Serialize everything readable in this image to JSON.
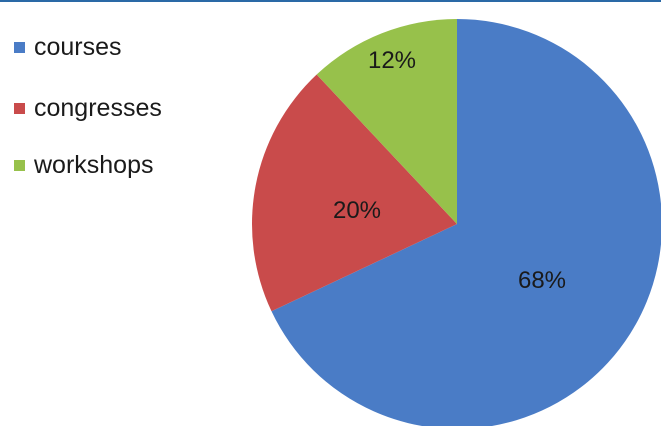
{
  "chart_data": {
    "type": "pie",
    "title": "",
    "legend_position": "top-left",
    "series": [
      {
        "name": "courses",
        "value": 68,
        "label": "68%",
        "color": "#4a7cc6"
      },
      {
        "name": "congresses",
        "value": 20,
        "label": "20%",
        "color": "#c94b4b"
      },
      {
        "name": "workshops",
        "value": 12,
        "label": "12%",
        "color": "#97c14b"
      }
    ]
  }
}
